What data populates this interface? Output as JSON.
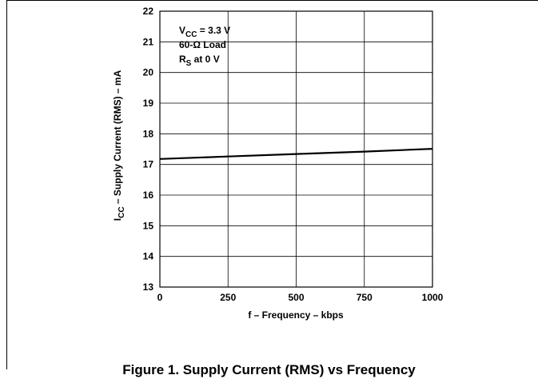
{
  "chart_data": {
    "type": "line",
    "x": [
      0,
      250,
      500,
      750,
      1000
    ],
    "series": [
      {
        "values": [
          17.18,
          17.26,
          17.34,
          17.42,
          17.51
        ]
      }
    ],
    "xlim": [
      0,
      1000
    ],
    "ylim": [
      13,
      22
    ],
    "xticks": [
      "0",
      "250",
      "500",
      "750",
      "1000"
    ],
    "yticks": [
      "13",
      "14",
      "15",
      "16",
      "17",
      "18",
      "19",
      "20",
      "21",
      "22"
    ],
    "xlabel": "f – Frequency – kbps",
    "ylabel": "ICC – Supply Current (RMS) – mA",
    "annotations": [
      "VCC = 3.3 V",
      "60-Ω Load",
      "RS at 0 V"
    ],
    "grid": true,
    "title": ""
  },
  "caption": "Figure 1. Supply Current (RMS) vs Frequency",
  "colors": {
    "line": "#000000",
    "grid": "#000000",
    "background": "#ffffff"
  }
}
